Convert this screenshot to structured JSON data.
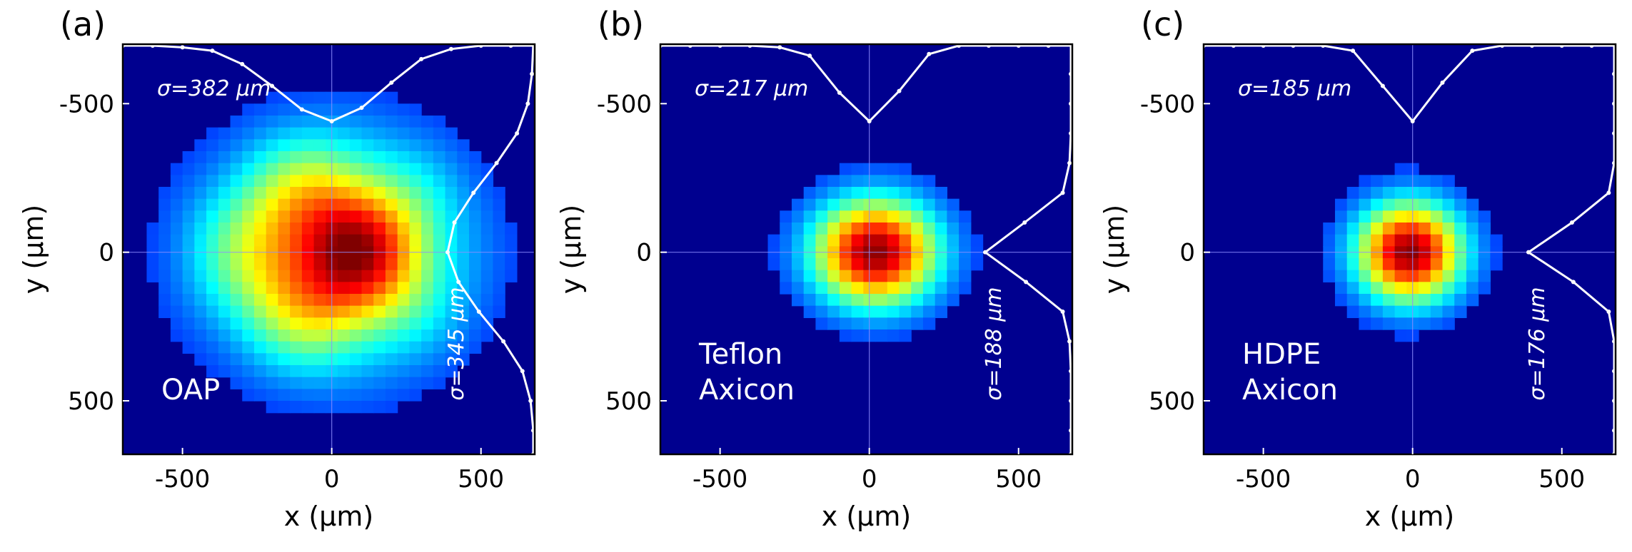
{
  "figure": {
    "colors": {
      "background": "#00008f",
      "curve": "#ffffff",
      "crosshair": "#8f8fff",
      "frame": "#000000"
    }
  },
  "chart_data": [
    {
      "type": "heatmap",
      "panel_label": "(a)",
      "label_lines": [
        "OAP"
      ],
      "xlabel": "x (μm)",
      "ylabel": "y (μm)",
      "xlim": [
        -700,
        680
      ],
      "ylim": [
        -700,
        680
      ],
      "y_axis_inverted": true,
      "xticks": [
        -500,
        0,
        500
      ],
      "yticks": [
        -500,
        0,
        500
      ],
      "xtick_labels": [
        "-500",
        "0",
        "500"
      ],
      "ytick_labels": [
        "-500",
        "0",
        "500"
      ],
      "sigma_x_label": "σ=382 μm",
      "sigma_y_label": "σ=345 μm",
      "sigma_x_um": 382,
      "sigma_y_um": 345,
      "beam_center_um": [
        0,
        0
      ],
      "profile_x": {
        "x": [
          -700,
          -600,
          -500,
          -400,
          -300,
          -200,
          -100,
          0,
          100,
          200,
          300,
          400,
          500,
          600,
          680
        ],
        "relative_intensity": [
          0.0,
          0.0,
          0.01,
          0.03,
          0.11,
          0.24,
          0.38,
          0.45,
          0.37,
          0.22,
          0.08,
          0.02,
          0.0,
          0.0,
          0.0
        ]
      },
      "profile_y": {
        "y": [
          -700,
          -600,
          -500,
          -400,
          -300,
          -200,
          -100,
          0,
          100,
          200,
          300,
          400,
          500,
          600,
          680
        ],
        "relative_intensity": [
          0.0,
          0.01,
          0.04,
          0.12,
          0.27,
          0.44,
          0.58,
          0.63,
          0.55,
          0.4,
          0.22,
          0.08,
          0.02,
          0.0,
          0.0
        ]
      }
    },
    {
      "type": "heatmap",
      "panel_label": "(b)",
      "label_lines": [
        "Teflon",
        "Axicon"
      ],
      "xlabel": "x (μm)",
      "ylabel": "y (μm)",
      "xlim": [
        -700,
        680
      ],
      "ylim": [
        -700,
        680
      ],
      "y_axis_inverted": true,
      "xticks": [
        -500,
        0,
        500
      ],
      "yticks": [
        -500,
        0,
        500
      ],
      "xtick_labels": [
        "-500",
        "0",
        "500"
      ],
      "ytick_labels": [
        "-500",
        "0",
        "500"
      ],
      "sigma_x_label": "σ=217 μm",
      "sigma_y_label": "σ=188 μm",
      "sigma_x_um": 217,
      "sigma_y_um": 188,
      "beam_center_um": [
        20,
        0
      ],
      "profile_x": {
        "x": [
          -700,
          -600,
          -500,
          -400,
          -300,
          -200,
          -100,
          0,
          100,
          200,
          300,
          400,
          500,
          600,
          680
        ],
        "relative_intensity": [
          0.0,
          0.0,
          0.0,
          0.0,
          0.01,
          0.06,
          0.28,
          0.45,
          0.27,
          0.05,
          0.0,
          0.0,
          0.0,
          0.0,
          0.0
        ]
      },
      "profile_y": {
        "y": [
          -700,
          -600,
          -500,
          -400,
          -300,
          -200,
          -100,
          0,
          100,
          200,
          300,
          400,
          500,
          600,
          680
        ],
        "relative_intensity": [
          0.0,
          0.0,
          0.0,
          0.0,
          0.01,
          0.06,
          0.34,
          0.63,
          0.33,
          0.06,
          0.01,
          0.0,
          0.0,
          0.0,
          0.0
        ]
      }
    },
    {
      "type": "heatmap",
      "panel_label": "(c)",
      "label_lines": [
        "HDPE",
        "Axicon"
      ],
      "xlabel": "x (μm)",
      "ylabel": "y (μm)",
      "xlim": [
        -700,
        680
      ],
      "ylim": [
        -700,
        680
      ],
      "y_axis_inverted": true,
      "xticks": [
        -500,
        0,
        500
      ],
      "yticks": [
        -500,
        0,
        500
      ],
      "xtick_labels": [
        "-500",
        "0",
        "500"
      ],
      "ytick_labels": [
        "-500",
        "0",
        "500"
      ],
      "sigma_x_label": "σ=185 μm",
      "sigma_y_label": "σ=176 μm",
      "sigma_x_um": 185,
      "sigma_y_um": 176,
      "beam_center_um": [
        -10,
        0
      ],
      "profile_x": {
        "x": [
          -700,
          -600,
          -500,
          -400,
          -300,
          -200,
          -100,
          0,
          100,
          200,
          300,
          400,
          500,
          600,
          680
        ],
        "relative_intensity": [
          0.0,
          0.0,
          0.0,
          0.0,
          0.0,
          0.03,
          0.24,
          0.45,
          0.22,
          0.03,
          0.0,
          0.0,
          0.0,
          0.0,
          0.0
        ]
      },
      "profile_y": {
        "y": [
          -700,
          -600,
          -500,
          -400,
          -300,
          -200,
          -100,
          0,
          100,
          200,
          300,
          400,
          500,
          600,
          680
        ],
        "relative_intensity": [
          0.0,
          0.0,
          0.0,
          0.0,
          0.0,
          0.04,
          0.31,
          0.63,
          0.3,
          0.04,
          0.0,
          0.0,
          0.0,
          0.0,
          0.0
        ]
      }
    }
  ]
}
